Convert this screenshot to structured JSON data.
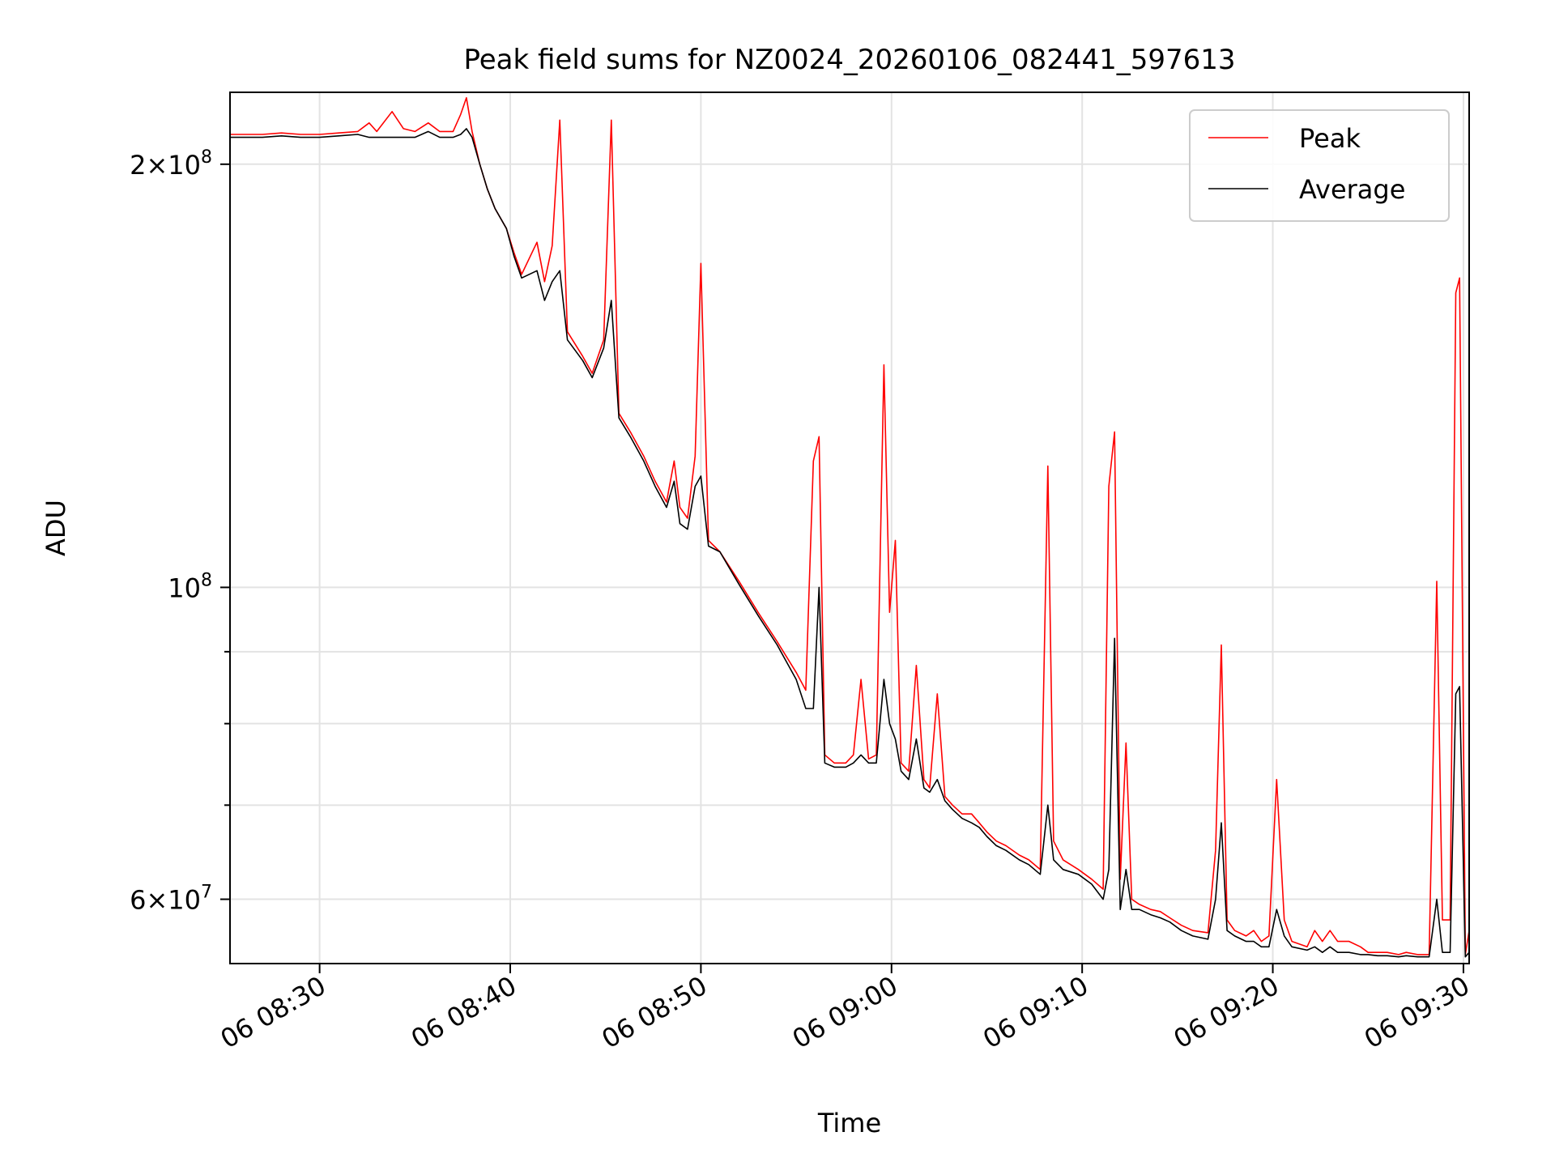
{
  "chart_data": {
    "type": "line",
    "title": "Peak field sums for NZ0024_20260106_082441_597613",
    "xlabel": "Time",
    "ylabel": "ADU",
    "yscale": "log",
    "grid": true,
    "legend_position": "upper-right",
    "xlim": [
      25.3,
      90.3
    ],
    "ylim": [
      54000000,
      225000000
    ],
    "x_ticks": [
      {
        "value": 30,
        "label": "06 08:30"
      },
      {
        "value": 40,
        "label": "06 08:40"
      },
      {
        "value": 50,
        "label": "06 08:50"
      },
      {
        "value": 60,
        "label": "06 09:00"
      },
      {
        "value": 70,
        "label": "06 09:10"
      },
      {
        "value": 80,
        "label": "06 09:20"
      },
      {
        "value": 90,
        "label": "06 09:30"
      }
    ],
    "y_ticks": [
      {
        "value": 200000000,
        "mantissa": "2",
        "exponent": "8"
      },
      {
        "value": 100000000,
        "mantissa": "",
        "exponent": "8"
      },
      {
        "value": 60000000,
        "mantissa": "6",
        "exponent": "7"
      }
    ],
    "y_minor_ticks": [
      70000000,
      80000000,
      90000000
    ],
    "x_unit_note": "minutes after 08:00 on day 06",
    "series": [
      {
        "name": "Peak",
        "color": "#ff0000",
        "points": [
          [
            25.3,
            210
          ],
          [
            26,
            210
          ],
          [
            27,
            210
          ],
          [
            28,
            210.5
          ],
          [
            29,
            210
          ],
          [
            30,
            210
          ],
          [
            31,
            210.5
          ],
          [
            32,
            211
          ],
          [
            32.6,
            214
          ],
          [
            33,
            211
          ],
          [
            33.8,
            218
          ],
          [
            34.4,
            212
          ],
          [
            35,
            211
          ],
          [
            35.7,
            214
          ],
          [
            36.3,
            211
          ],
          [
            37,
            211
          ],
          [
            37.4,
            217
          ],
          [
            37.7,
            223
          ],
          [
            38,
            211
          ],
          [
            38.4,
            200
          ],
          [
            38.8,
            192
          ],
          [
            39.2,
            186
          ],
          [
            39.8,
            180
          ],
          [
            40.2,
            173
          ],
          [
            40.6,
            167
          ],
          [
            41.4,
            176
          ],
          [
            41.8,
            165
          ],
          [
            42.2,
            175
          ],
          [
            42.6,
            215
          ],
          [
            43.0,
            152
          ],
          [
            43.8,
            146
          ],
          [
            44.3,
            142
          ],
          [
            44.9,
            150
          ],
          [
            45.3,
            215
          ],
          [
            45.7,
            133
          ],
          [
            46.3,
            129
          ],
          [
            47,
            124
          ],
          [
            47.6,
            119
          ],
          [
            48.2,
            115
          ],
          [
            48.6,
            123
          ],
          [
            48.9,
            114
          ],
          [
            49.3,
            112
          ],
          [
            49.7,
            124
          ],
          [
            50.0,
            170
          ],
          [
            50.4,
            108
          ],
          [
            51,
            106
          ],
          [
            52,
            101
          ],
          [
            53,
            96
          ],
          [
            54,
            91.5
          ],
          [
            55,
            87
          ],
          [
            55.5,
            84.5
          ],
          [
            55.9,
            123
          ],
          [
            56.2,
            128
          ],
          [
            56.5,
            76
          ],
          [
            57,
            75
          ],
          [
            57.6,
            75
          ],
          [
            58,
            76
          ],
          [
            58.4,
            86
          ],
          [
            58.8,
            75.5
          ],
          [
            59.2,
            76
          ],
          [
            59.6,
            144
          ],
          [
            59.9,
            96
          ],
          [
            60.2,
            108
          ],
          [
            60.5,
            75
          ],
          [
            60.9,
            74
          ],
          [
            61.3,
            88
          ],
          [
            61.7,
            73
          ],
          [
            62.0,
            72
          ],
          [
            62.4,
            84
          ],
          [
            62.8,
            71
          ],
          [
            63.2,
            70
          ],
          [
            63.7,
            69
          ],
          [
            64.2,
            69
          ],
          [
            64.6,
            68
          ],
          [
            65,
            67
          ],
          [
            65.5,
            66
          ],
          [
            66,
            65.5
          ],
          [
            66.7,
            64.5
          ],
          [
            67.2,
            64
          ],
          [
            67.8,
            63
          ],
          [
            68.2,
            122
          ],
          [
            68.5,
            66
          ],
          [
            69,
            64
          ],
          [
            69.8,
            63
          ],
          [
            70.5,
            62
          ],
          [
            71.1,
            61
          ],
          [
            71.4,
            118
          ],
          [
            71.7,
            129
          ],
          [
            72,
            62
          ],
          [
            72.3,
            77.5
          ],
          [
            72.6,
            60
          ],
          [
            73,
            59.5
          ],
          [
            73.6,
            59
          ],
          [
            74.1,
            58.8
          ],
          [
            74.6,
            58.2
          ],
          [
            75.2,
            57.5
          ],
          [
            75.8,
            57
          ],
          [
            76.6,
            56.8
          ],
          [
            77.0,
            65
          ],
          [
            77.3,
            91
          ],
          [
            77.6,
            58
          ],
          [
            78,
            57
          ],
          [
            78.6,
            56.5
          ],
          [
            79,
            57
          ],
          [
            79.4,
            56
          ],
          [
            79.8,
            56.5
          ],
          [
            80.2,
            73
          ],
          [
            80.6,
            58
          ],
          [
            81,
            56
          ],
          [
            81.8,
            55.5
          ],
          [
            82.2,
            57
          ],
          [
            82.6,
            56
          ],
          [
            83.0,
            57
          ],
          [
            83.4,
            56
          ],
          [
            84,
            56
          ],
          [
            84.6,
            55.5
          ],
          [
            85,
            55
          ],
          [
            85.5,
            55
          ],
          [
            86,
            55
          ],
          [
            86.6,
            54.8
          ],
          [
            87,
            55
          ],
          [
            87.6,
            54.8
          ],
          [
            88.2,
            54.8
          ],
          [
            88.6,
            101
          ],
          [
            88.9,
            58
          ],
          [
            89.3,
            58
          ],
          [
            89.6,
            162
          ],
          [
            89.8,
            166
          ],
          [
            90.1,
            54.8
          ],
          [
            90.3,
            57
          ],
          [
            90.3,
            56
          ]
        ]
      },
      {
        "name": "Average",
        "color": "#000000",
        "points": [
          [
            25.3,
            209
          ],
          [
            26,
            209
          ],
          [
            27,
            209
          ],
          [
            28,
            209.5
          ],
          [
            29,
            209
          ],
          [
            30,
            209
          ],
          [
            31,
            209.5
          ],
          [
            32,
            210
          ],
          [
            32.6,
            209
          ],
          [
            33,
            209
          ],
          [
            33.8,
            209
          ],
          [
            34.4,
            209
          ],
          [
            35,
            209
          ],
          [
            35.7,
            211
          ],
          [
            36.3,
            209
          ],
          [
            37,
            209
          ],
          [
            37.4,
            210
          ],
          [
            37.7,
            212
          ],
          [
            38,
            209
          ],
          [
            38.4,
            200
          ],
          [
            38.8,
            192
          ],
          [
            39.2,
            186
          ],
          [
            39.8,
            180
          ],
          [
            40.2,
            172
          ],
          [
            40.6,
            166
          ],
          [
            41.4,
            168
          ],
          [
            41.8,
            160
          ],
          [
            42.2,
            165
          ],
          [
            42.6,
            168
          ],
          [
            43.0,
            150
          ],
          [
            43.8,
            145
          ],
          [
            44.3,
            141
          ],
          [
            44.9,
            148
          ],
          [
            45.3,
            160
          ],
          [
            45.7,
            132
          ],
          [
            46.3,
            128
          ],
          [
            47,
            123
          ],
          [
            47.6,
            118
          ],
          [
            48.2,
            114
          ],
          [
            48.6,
            119
          ],
          [
            48.9,
            111
          ],
          [
            49.3,
            110
          ],
          [
            49.7,
            118
          ],
          [
            50.0,
            120
          ],
          [
            50.4,
            107
          ],
          [
            51,
            106
          ],
          [
            52,
            100.5
          ],
          [
            53,
            95.5
          ],
          [
            54,
            91
          ],
          [
            55,
            86
          ],
          [
            55.5,
            82
          ],
          [
            55.9,
            82
          ],
          [
            56.2,
            100
          ],
          [
            56.5,
            75
          ],
          [
            57,
            74.5
          ],
          [
            57.6,
            74.5
          ],
          [
            58,
            75
          ],
          [
            58.4,
            76
          ],
          [
            58.8,
            75
          ],
          [
            59.2,
            75
          ],
          [
            59.6,
            86
          ],
          [
            59.9,
            80
          ],
          [
            60.2,
            78
          ],
          [
            60.5,
            74
          ],
          [
            60.9,
            73
          ],
          [
            61.3,
            78
          ],
          [
            61.7,
            72
          ],
          [
            62.0,
            71.5
          ],
          [
            62.4,
            73
          ],
          [
            62.8,
            70.5
          ],
          [
            63.2,
            69.5
          ],
          [
            63.7,
            68.5
          ],
          [
            64.2,
            68
          ],
          [
            64.6,
            67.5
          ],
          [
            65,
            66.5
          ],
          [
            65.5,
            65.5
          ],
          [
            66,
            65
          ],
          [
            66.7,
            64
          ],
          [
            67.2,
            63.5
          ],
          [
            67.8,
            62.5
          ],
          [
            68.2,
            70
          ],
          [
            68.5,
            64
          ],
          [
            69,
            63
          ],
          [
            69.8,
            62.5
          ],
          [
            70.5,
            61.5
          ],
          [
            71.1,
            60
          ],
          [
            71.4,
            63
          ],
          [
            71.7,
            92
          ],
          [
            72,
            59
          ],
          [
            72.3,
            63
          ],
          [
            72.6,
            59
          ],
          [
            73,
            59
          ],
          [
            73.6,
            58.5
          ],
          [
            74.1,
            58.2
          ],
          [
            74.6,
            57.8
          ],
          [
            75.2,
            57
          ],
          [
            75.8,
            56.5
          ],
          [
            76.6,
            56.2
          ],
          [
            77.0,
            60
          ],
          [
            77.3,
            68
          ],
          [
            77.6,
            57
          ],
          [
            78,
            56.5
          ],
          [
            78.6,
            56
          ],
          [
            79,
            56
          ],
          [
            79.4,
            55.5
          ],
          [
            79.8,
            55.5
          ],
          [
            80.2,
            59
          ],
          [
            80.6,
            56.5
          ],
          [
            81,
            55.5
          ],
          [
            81.8,
            55.2
          ],
          [
            82.2,
            55.5
          ],
          [
            82.6,
            55
          ],
          [
            83.0,
            55.5
          ],
          [
            83.4,
            55
          ],
          [
            84,
            55
          ],
          [
            84.6,
            54.8
          ],
          [
            85,
            54.8
          ],
          [
            85.5,
            54.7
          ],
          [
            86,
            54.7
          ],
          [
            86.6,
            54.6
          ],
          [
            87,
            54.7
          ],
          [
            87.6,
            54.6
          ],
          [
            88.2,
            54.6
          ],
          [
            88.6,
            60
          ],
          [
            88.9,
            55
          ],
          [
            89.3,
            55
          ],
          [
            89.6,
            84
          ],
          [
            89.8,
            85
          ],
          [
            90.1,
            54.6
          ],
          [
            90.3,
            55
          ],
          [
            90.3,
            54.8
          ]
        ]
      }
    ]
  }
}
